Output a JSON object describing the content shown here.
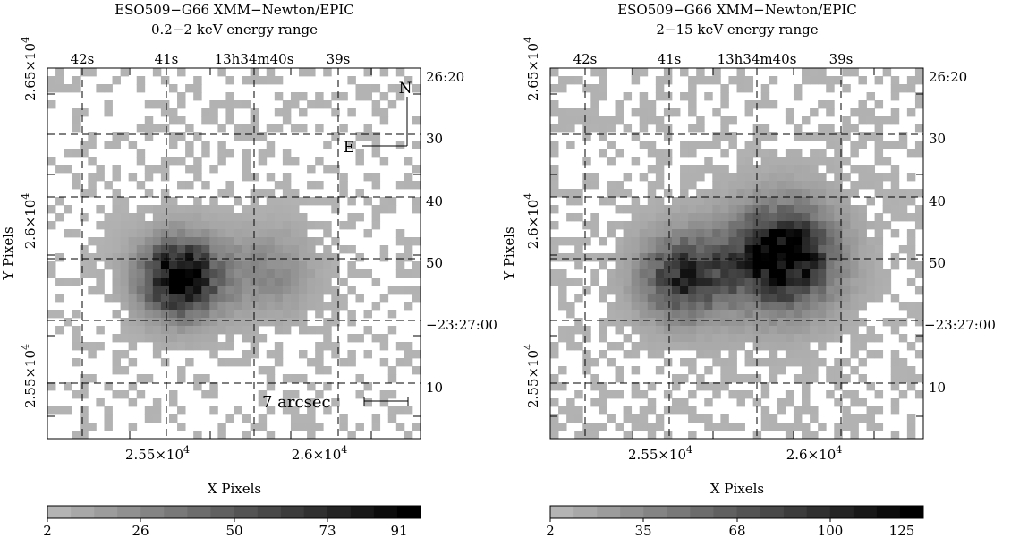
{
  "panels": [
    {
      "title_line1": "ESO509−G66 XMM−Newton/EPIC",
      "title_line2": "0.2−2 keV energy range",
      "ra_ticks": [
        "42s",
        "41s",
        "13h34m40s",
        "39s"
      ],
      "dec_ticks": [
        "26:20",
        "30",
        "40",
        "50",
        "−23:27:00",
        "10"
      ],
      "x_ticks": [
        "2.55×10^4",
        "2.6×10^4"
      ],
      "y_ticks": [
        "2.65×10^4",
        "2.6×10^4",
        "2.55×10^4"
      ],
      "xlabel": "X Pixels",
      "ylabel": "Y Pixels",
      "colorbar_ticks": [
        "2",
        "26",
        "50",
        "73",
        "91"
      ],
      "compass_n": "N",
      "compass_e": "E",
      "scale_label": "7 arcsec",
      "sources": [
        {
          "x": 0.355,
          "y": 0.565,
          "sigma": 0.085,
          "peak": 1.0
        },
        {
          "x": 0.6,
          "y": 0.55,
          "sigma": 0.09,
          "peak": 0.35
        }
      ],
      "background": 0.05,
      "colors": {
        "low": "#b4b4b4",
        "high": "#000000"
      }
    },
    {
      "title_line1": "ESO509−G66 XMM−Newton/EPIC",
      "title_line2": "2−15 keV energy range",
      "ra_ticks": [
        "42s",
        "41s",
        "13h34m40s",
        "39s"
      ],
      "dec_ticks": [
        "26:20",
        "30",
        "40",
        "50",
        "−23:27:00",
        "10"
      ],
      "x_ticks": [
        "2.55×10^4",
        "2.6×10^4"
      ],
      "y_ticks": [
        "2.65×10^4",
        "2.6×10^4",
        "2.55×10^4"
      ],
      "xlabel": "X Pixels",
      "ylabel": "Y Pixels",
      "colorbar_ticks": [
        "2",
        "35",
        "68",
        "100",
        "125"
      ],
      "sources": [
        {
          "x": 0.355,
          "y": 0.565,
          "sigma": 0.09,
          "peak": 0.75
        },
        {
          "x": 0.625,
          "y": 0.51,
          "sigma": 0.11,
          "peak": 1.0
        }
      ],
      "background": 0.07,
      "colors": {
        "low": "#b4b4b4",
        "high": "#000000"
      }
    }
  ]
}
